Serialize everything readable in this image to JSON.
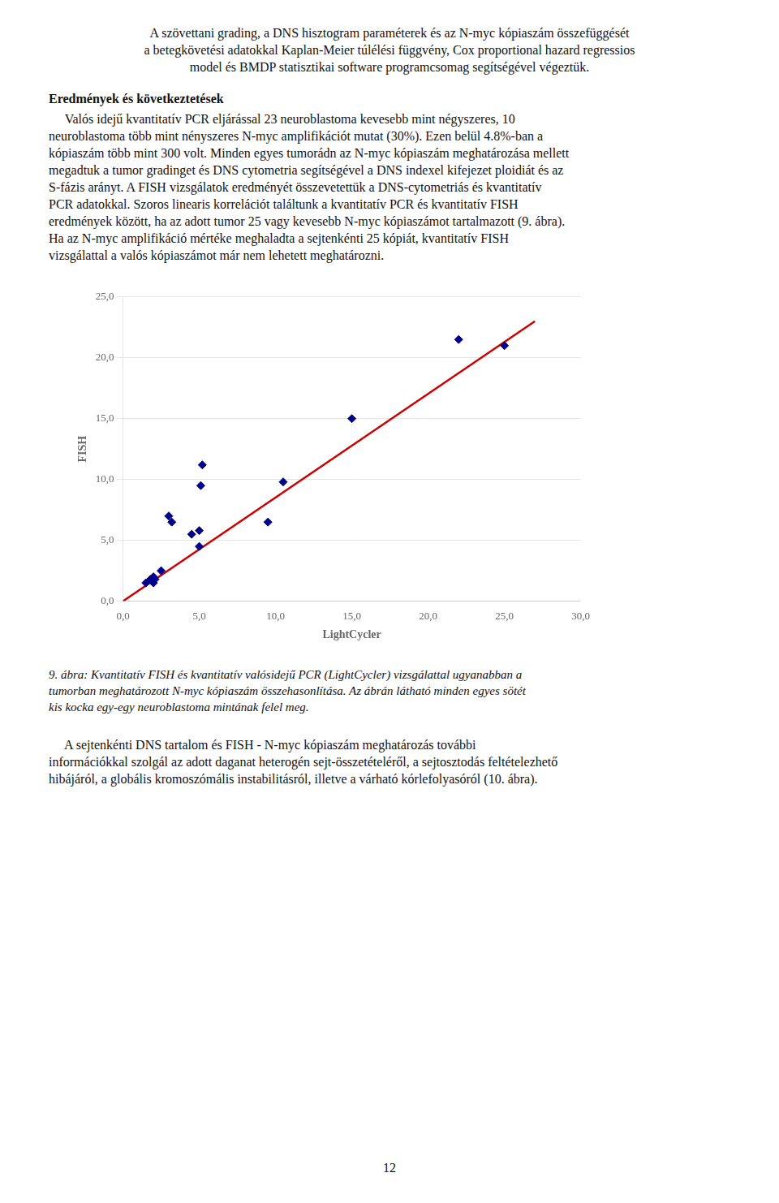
{
  "chart_data": {
    "type": "scatter",
    "xlabel": "LightCycler",
    "ylabel": "FISH",
    "xlim": [
      0,
      30
    ],
    "ylim": [
      0,
      25
    ],
    "xticks": [
      {
        "value": 0,
        "label": "0,0"
      },
      {
        "value": 5,
        "label": "5,0"
      },
      {
        "value": 10,
        "label": "10,0"
      },
      {
        "value": 15,
        "label": "15,0"
      },
      {
        "value": 20,
        "label": "20,0"
      },
      {
        "value": 25,
        "label": "25,0"
      },
      {
        "value": 30,
        "label": "30,0"
      }
    ],
    "yticks": [
      {
        "value": 0,
        "label": "0,0"
      },
      {
        "value": 5,
        "label": "5,0"
      },
      {
        "value": 10,
        "label": "10,0"
      },
      {
        "value": 15,
        "label": "15,0"
      },
      {
        "value": 20,
        "label": "20,0"
      },
      {
        "value": 25,
        "label": "25,0"
      }
    ],
    "grid": "y",
    "series": [
      {
        "type": "scatter",
        "marker": "diamond",
        "color": "#00008B",
        "x": [
          1.5,
          1.8,
          2.0,
          2.0,
          2.1,
          2.5,
          3.0,
          3.2,
          4.5,
          5.0,
          5.0,
          5.1,
          5.2,
          9.5,
          10.5,
          15.0,
          22.0,
          25.0
        ],
        "values": [
          1.5,
          1.8,
          1.5,
          2.0,
          1.8,
          2.5,
          7.0,
          6.5,
          5.5,
          4.5,
          5.8,
          9.5,
          11.2,
          6.5,
          9.8,
          15.0,
          21.5,
          21.0
        ]
      },
      {
        "type": "line",
        "line_style": "solid",
        "color": "#CC0000",
        "x": [
          0.0,
          27.0
        ],
        "values": [
          0.0,
          23.0
        ]
      }
    ],
    "annotations": [
      "A szövettani grading, a DNS hisztogram paraméterek és az N-myc kópiaszám összefüggését",
      "a betegkövetési adatokkal Kaplan-Meier túlélési függvény, Cox proportional hazard regressios",
      "model és BMDP statisztikai software programcsomag segítségével végeztük.",
      "Eredmények és következtetések",
      "     Valós idejű kvantitatív PCR eljárással 23 neuroblastoma kevesebb mint négyszeres, 10",
      "neuroblastoma több mint nényszeres N-myc amplifikációt mutat (30%). Ezen belül 4.8%-ban a",
      "kópiaszám több mint 300 volt. Minden egyes tumorádn az N-myc kópiaszám meghatározása mellett",
      "megadtuk a tumor gradinget és DNS cytometria segítségével a DNS indexel kifejezet ploidiát és az",
      "S-fázis arányt. A FISH vizsgálatok eredményét összevetettük a DNS-cytometriás és kvantitatív",
      "PCR adatokkal. Szoros linearis korrelációt találtunk a kvantitatív PCR és kvantitatív FISH",
      "eredmények között, ha az adott tumor 25 vagy kevesebb N-myc kópiaszámot tartalmazott (9. ábra).",
      "Ha az N-myc amplifikáció mértéke meghaladta a sejtenkénti 25 kópiát, kvantitatív FISH",
      "vizsgálattal a valós kópiaszámot már nem lehetett meghatározni.",
      "9. ábra: Kvantitatív FISH és kvantitatív valósidejű PCR (LightCycler) vizsgálattal ugyanabban a",
      "tumorban meghatározott N-myc kópiaszám összehasonlítása. Az ábrán látható minden egyes sötét",
      "kis kocka egy-egy neuroblastoma mintának felel meg.",
      "     A sejtenkénti DNS tartalom és FISH - N-myc kópiaszám meghatározás további",
      "információkkal szolgál az adott daganat heterogén sejt-összetételéről, a sejtosztodás feltételezhető",
      "hibájáról, a globális kromoszómális instabilitásról, illetve a várható kórlefolyasóról (10. ábra).",
      "12"
    ]
  }
}
